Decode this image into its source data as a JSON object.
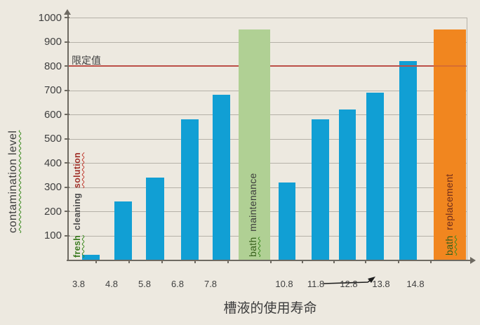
{
  "chart_data": {
    "type": "bar",
    "title": "",
    "xlabel": "槽液的使用寿命",
    "ylabel": "contamination level",
    "ylim": [
      0,
      1000
    ],
    "yticks": [
      100,
      200,
      300,
      400,
      500,
      600,
      700,
      800,
      900,
      1000
    ],
    "grid": true,
    "legend": false,
    "bars": [
      {
        "label": "3.8",
        "value": 20,
        "kind": "data"
      },
      {
        "label": "4.8",
        "value": 240,
        "kind": "data"
      },
      {
        "label": "5.8",
        "value": 340,
        "kind": "data"
      },
      {
        "label": "6.8",
        "value": 580,
        "kind": "data"
      },
      {
        "label": "7.8",
        "value": 680,
        "kind": "data"
      },
      {
        "label": "",
        "value": 950,
        "kind": "maintenance",
        "text": "bath maintenance"
      },
      {
        "label": "10.8",
        "value": 320,
        "kind": "data"
      },
      {
        "label": "11.8",
        "value": 580,
        "kind": "data"
      },
      {
        "label": "12.8",
        "value": 620,
        "kind": "data"
      },
      {
        "label": "13.8",
        "value": 690,
        "kind": "data"
      },
      {
        "label": "14.8",
        "value": 820,
        "kind": "data"
      },
      {
        "label": "",
        "value": 950,
        "kind": "replacement",
        "text": "bath replacement"
      }
    ],
    "limit_line": {
      "value": 800,
      "label": "限定值"
    },
    "left_vertical_annotation": [
      {
        "text": "fresh",
        "color": "#3a7a1f",
        "squiggle": "green"
      },
      {
        "text": "cleaning",
        "color": "#4c4c4c",
        "squiggle": "none"
      },
      {
        "text": "solution",
        "color": "#a03028",
        "squiggle": "red"
      }
    ],
    "maintenance_words": [
      {
        "text": "bath",
        "color": "#355e18",
        "squiggle": "green"
      },
      {
        "text": "maintenance",
        "color": "#3b3b3b",
        "squiggle": "none"
      }
    ],
    "replacement_words": [
      {
        "text": "bath",
        "color": "#355e18",
        "squiggle": "green"
      },
      {
        "text": "replacement",
        "color": "#6f2b1b",
        "squiggle": "none"
      }
    ],
    "strike_arrow": {
      "crosses": "12.8",
      "from": "11.8",
      "to": "13.8"
    }
  },
  "colors": {
    "background": "#ede9e0",
    "bar_blue": "#119fd4",
    "bar_green": "#b0d094",
    "bar_orange": "#f1861f",
    "gridline": "#b5b1a8",
    "axis": "#6e6a62",
    "limit_red": "#bb4f47",
    "text": "#3f3f3f"
  }
}
